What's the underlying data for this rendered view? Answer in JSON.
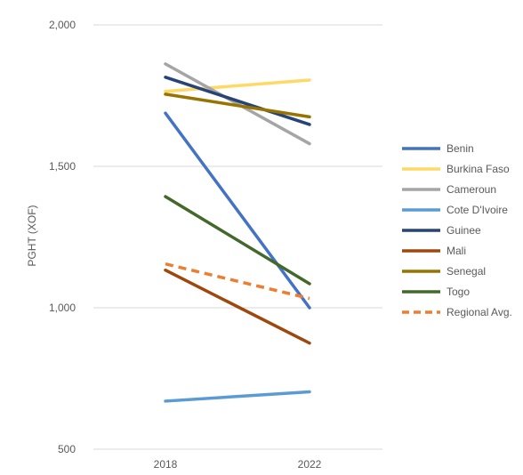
{
  "chart_data": {
    "type": "line",
    "ylabel": "PGHT (XOF)",
    "xlabel": "",
    "x": [
      "2018",
      "2022"
    ],
    "ylim": [
      500,
      2000
    ],
    "yticks": [
      "500",
      "1,000",
      "1,500",
      "2,000"
    ],
    "grid": "horizontal",
    "legend": "right",
    "series": [
      {
        "name": "Benin",
        "values": [
          1688,
          1000
        ],
        "color": "#4472C4",
        "style": "solid"
      },
      {
        "name": "Burkina Faso",
        "values": [
          1765,
          1805
        ],
        "color": "#FFD966",
        "style": "solid"
      },
      {
        "name": "Cameroun",
        "values": [
          1862,
          1580
        ],
        "color": "#A5A5A5",
        "style": "solid"
      },
      {
        "name": "Cote D'Ivoire",
        "values": [
          670,
          703
        ],
        "color": "#5B9BD5",
        "style": "solid"
      },
      {
        "name": "Guinee",
        "values": [
          1815,
          1648
        ],
        "color": "#264478",
        "style": "solid"
      },
      {
        "name": "Mali",
        "values": [
          1133,
          875
        ],
        "color": "#9E480E",
        "style": "solid"
      },
      {
        "name": "Senegal",
        "values": [
          1755,
          1675
        ],
        "color": "#997300",
        "style": "solid"
      },
      {
        "name": "Togo",
        "values": [
          1393,
          1085
        ],
        "color": "#43682B",
        "style": "solid"
      },
      {
        "name": "Regional Avg.",
        "values": [
          1155,
          1033
        ],
        "color": "#ED7D31",
        "style": "dashed"
      }
    ]
  }
}
